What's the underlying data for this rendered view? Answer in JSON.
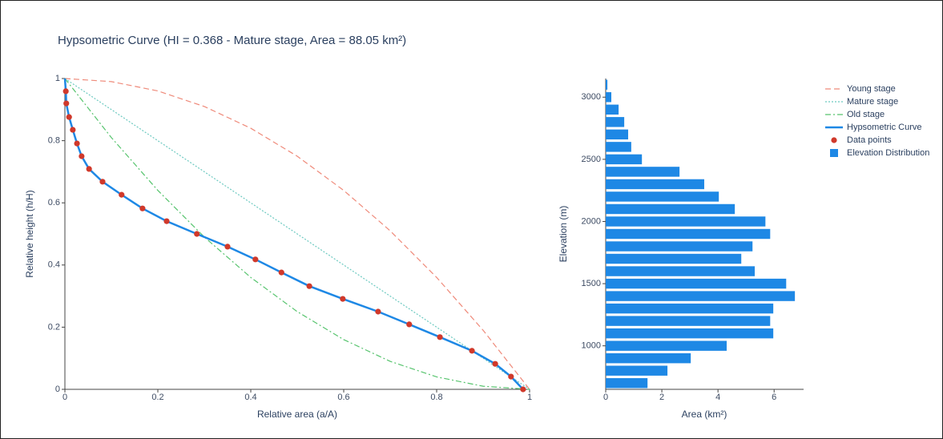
{
  "chart_data": [
    {
      "type": "line",
      "title": "Hypsometric Curve (HI = 0.368 - Mature stage, Area = 88.05 km²)",
      "xlabel": "Relative area (a/A)",
      "ylabel": "Relative height (h/H)",
      "xlim": [
        0,
        1
      ],
      "ylim": [
        0,
        1
      ],
      "xticks": [
        0,
        0.2,
        0.4,
        0.6,
        0.8,
        1
      ],
      "yticks": [
        0,
        0.2,
        0.4,
        0.6,
        0.8,
        1
      ],
      "grid": false,
      "series": [
        {
          "name": "Young stage",
          "color": "#ef8a7a",
          "dash": "dash",
          "x": [
            0,
            0.1,
            0.2,
            0.3,
            0.4,
            0.5,
            0.6,
            0.7,
            0.8,
            0.9,
            1
          ],
          "values": [
            1,
            0.99,
            0.96,
            0.91,
            0.84,
            0.75,
            0.64,
            0.51,
            0.36,
            0.19,
            0
          ]
        },
        {
          "name": "Mature stage",
          "color": "#6cc9c0",
          "dash": "dot",
          "x": [
            0,
            1
          ],
          "values": [
            1,
            0
          ]
        },
        {
          "name": "Old stage",
          "color": "#57c46e",
          "dash": "dashdot",
          "x": [
            0,
            0.1,
            0.2,
            0.3,
            0.4,
            0.5,
            0.6,
            0.7,
            0.8,
            0.9,
            1
          ],
          "values": [
            1,
            0.81,
            0.64,
            0.49,
            0.36,
            0.25,
            0.16,
            0.09,
            0.04,
            0.01,
            0
          ]
        },
        {
          "name": "Hypsometric Curve",
          "color": "#1e88e5",
          "dash": "solid",
          "x": [
            0,
            0.002,
            0.003,
            0.009,
            0.017,
            0.026,
            0.036,
            0.052,
            0.081,
            0.122,
            0.167,
            0.219,
            0.284,
            0.35,
            0.41,
            0.466,
            0.526,
            0.598,
            0.674,
            0.741,
            0.807,
            0.876,
            0.926,
            0.96,
            0.986
          ],
          "values": [
            1,
            0.959,
            0.92,
            0.876,
            0.835,
            0.791,
            0.75,
            0.709,
            0.668,
            0.626,
            0.582,
            0.541,
            0.5,
            0.459,
            0.418,
            0.376,
            0.332,
            0.291,
            0.25,
            0.209,
            0.168,
            0.124,
            0.082,
            0.041,
            0
          ]
        },
        {
          "name": "Data points",
          "color": "#d0392b",
          "mode": "markers",
          "x": [
            0.002,
            0.003,
            0.009,
            0.017,
            0.026,
            0.036,
            0.052,
            0.081,
            0.122,
            0.167,
            0.219,
            0.284,
            0.35,
            0.41,
            0.466,
            0.526,
            0.598,
            0.674,
            0.741,
            0.807,
            0.876,
            0.926,
            0.96,
            0.986
          ],
          "values": [
            0.959,
            0.92,
            0.876,
            0.835,
            0.791,
            0.75,
            0.709,
            0.668,
            0.626,
            0.582,
            0.541,
            0.5,
            0.459,
            0.418,
            0.376,
            0.332,
            0.291,
            0.25,
            0.209,
            0.168,
            0.124,
            0.082,
            0.041,
            0
          ]
        }
      ]
    },
    {
      "type": "hbar",
      "xlabel": "Area (km²)",
      "ylabel": "Elevation (m)",
      "xlim": [
        0,
        7.05
      ],
      "ylim": [
        650,
        3150
      ],
      "xticks": [
        0,
        2,
        4,
        6
      ],
      "yticks": [
        1000,
        1500,
        2000,
        2500,
        3000
      ],
      "grid": false,
      "y": [
        700,
        800,
        900,
        1000,
        1100,
        1200,
        1300,
        1400,
        1500,
        1600,
        1700,
        1800,
        1900,
        2000,
        2100,
        2200,
        2300,
        2400,
        2500,
        2600,
        2700,
        2800,
        2900,
        3000,
        3100
      ],
      "series": [
        {
          "name": "Elevation Distribution",
          "color": "#1e88e5",
          "values": [
            1.49,
            2.2,
            3.03,
            4.31,
            5.97,
            5.86,
            5.97,
            6.74,
            6.43,
            5.31,
            4.83,
            5.23,
            5.86,
            5.69,
            4.6,
            4.03,
            3.51,
            2.63,
            1.29,
            0.91,
            0.8,
            0.66,
            0.46,
            0.2,
            0.06
          ]
        }
      ]
    }
  ]
}
